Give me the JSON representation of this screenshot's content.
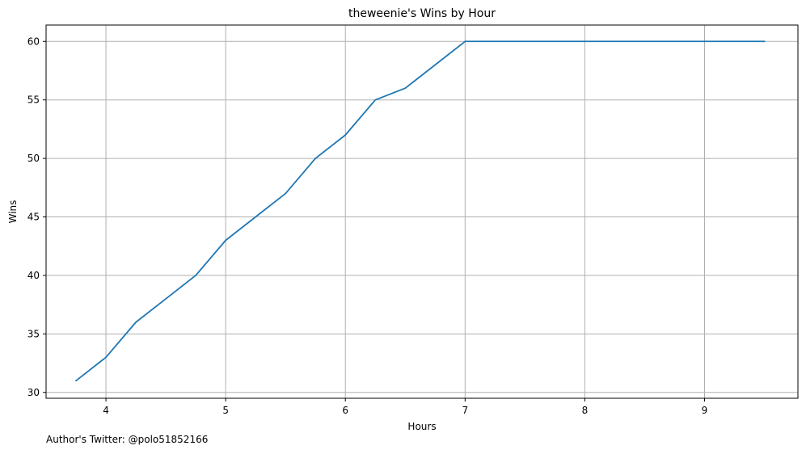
{
  "chart_data": {
    "type": "line",
    "title": "theweenie's Wins by Hour",
    "xlabel": "Hours",
    "ylabel": "Wins",
    "xlim": [
      3.5,
      9.78
    ],
    "ylim": [
      29.5,
      61.4
    ],
    "xticks": [
      4,
      5,
      6,
      7,
      8,
      9
    ],
    "yticks": [
      30,
      35,
      40,
      45,
      50,
      55,
      60
    ],
    "grid": true,
    "series": [
      {
        "color": "#1f77b4",
        "x": [
          3.75,
          4.0,
          4.25,
          4.5,
          4.75,
          5.0,
          5.25,
          5.5,
          5.75,
          6.0,
          6.25,
          6.5,
          6.75,
          7.0,
          7.25,
          7.5,
          7.75,
          8.0,
          8.25,
          8.5,
          8.75,
          9.0,
          9.25,
          9.5
        ],
        "y": [
          31,
          33,
          36,
          38,
          40,
          43,
          45,
          47,
          50,
          52,
          55,
          56,
          58,
          60,
          60,
          60,
          60,
          60,
          60,
          60,
          60,
          60,
          60,
          60
        ]
      }
    ]
  },
  "footnote": "Author's Twitter: @polo51852166"
}
